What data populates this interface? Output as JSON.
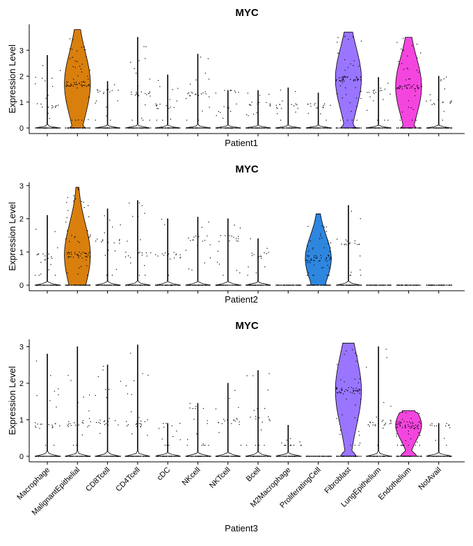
{
  "chart_data": [
    {
      "type": "violin",
      "title": "MYC",
      "xlabel": "Patient1",
      "ylabel": "Expression Level",
      "ylim": [
        0,
        4
      ],
      "yticks": [
        0,
        1,
        2,
        3
      ],
      "categories": [
        "Macrophage",
        "MalignantEpithelial",
        "CD8Tcell",
        "CD4Tcell",
        "cDC",
        "NKcell",
        "NKTcell",
        "Bcell",
        "M2Macrophage",
        "ProliferatingCell",
        "Fibroblast",
        "LungEpithelium",
        "Endothelium",
        "NotAvail"
      ],
      "colors": [
        "#F8766D",
        "#D97F0E",
        "#B89B00",
        "#8FA900",
        "#3DB400",
        "#00BE67",
        "#00C19C",
        "#00BFC4",
        "#00B8E5",
        "#2EA3F5",
        "#9A75FF",
        "#C77CFF",
        "#F445DF",
        "#FF61C3"
      ],
      "filled_violins": [
        1,
        10,
        12
      ],
      "max_values": [
        2.8,
        3.8,
        1.8,
        3.5,
        2.05,
        2.85,
        1.45,
        1.45,
        1.55,
        1.35,
        3.7,
        1.95,
        3.5,
        2.0
      ],
      "modes": [
        0.85,
        1.7,
        1.4,
        1.3,
        0.85,
        1.3,
        1.4,
        0.9,
        0.85,
        0.85,
        1.9,
        1.4,
        1.6,
        1.0
      ]
    },
    {
      "type": "violin",
      "title": "MYC",
      "xlabel": "Patient2",
      "ylabel": "Expression Level",
      "ylim": [
        0,
        3.1
      ],
      "yticks": [
        0,
        1,
        2,
        3
      ],
      "categories": [
        "Macrophage",
        "MalignantEpithelial",
        "CD8Tcell",
        "CD4Tcell",
        "cDC",
        "NKcell",
        "NKTcell",
        "Bcell",
        "M2Macrophage",
        "ProliferatingCell",
        "Fibroblast",
        "LungEpithelium",
        "Endothelium",
        "NotAvail"
      ],
      "colors": [
        "#F8766D",
        "#D97F0E",
        "#B89B00",
        "#8FA900",
        "#3DB400",
        "#00BE67",
        "#00C19C",
        "#00BFC4",
        "#00B8E5",
        "#2E86DE",
        "#9A75FF",
        "#C77CFF",
        "#F445DF",
        "#FF61C3"
      ],
      "filled_violins": [
        1,
        9
      ],
      "max_values": [
        2.1,
        2.95,
        2.3,
        2.55,
        2.0,
        2.05,
        2.0,
        1.4,
        0.0,
        2.15,
        2.4,
        0.0,
        0.0,
        0.0
      ],
      "modes": [
        0.85,
        0.9,
        1.3,
        0.9,
        0.9,
        1.4,
        1.4,
        0.9,
        0.0,
        0.8,
        1.3,
        0.0,
        0.0,
        0.0
      ]
    },
    {
      "type": "violin",
      "title": "MYC",
      "xlabel": "Patient3",
      "ylabel": "Expression Level",
      "ylim": [
        0,
        3.2
      ],
      "yticks": [
        0,
        1,
        2,
        3
      ],
      "categories": [
        "Macrophage",
        "MalignantEpithelial",
        "CD8Tcell",
        "CD4Tcell",
        "cDC",
        "NKcell",
        "NKTcell",
        "Bcell",
        "M2Macrophage",
        "ProliferatingCell",
        "Fibroblast",
        "LungEpithelium",
        "Endothelium",
        "NotAvail"
      ],
      "colors": [
        "#F8766D",
        "#D97F0E",
        "#B89B00",
        "#8FA900",
        "#3DB400",
        "#00BE67",
        "#00C19C",
        "#00BFC4",
        "#00B8E5",
        "#2EA3F5",
        "#9A75FF",
        "#C77CFF",
        "#F445DF",
        "#FF61C3"
      ],
      "filled_violins": [
        10,
        12
      ],
      "max_values": [
        2.8,
        3.0,
        2.5,
        3.05,
        0.9,
        1.45,
        2.0,
        2.35,
        0.85,
        0.0,
        3.1,
        3.0,
        1.25,
        0.9
      ],
      "modes": [
        0.85,
        0.9,
        0.95,
        0.9,
        0.85,
        1.4,
        0.95,
        1.0,
        0.0,
        0.0,
        1.8,
        0.9,
        0.85,
        0.85
      ]
    }
  ]
}
